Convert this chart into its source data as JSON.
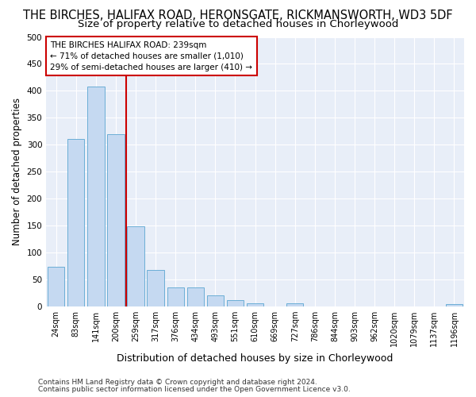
{
  "title": "THE BIRCHES, HALIFAX ROAD, HERONSGATE, RICKMANSWORTH, WD3 5DF",
  "subtitle": "Size of property relative to detached houses in Chorleywood",
  "xlabel": "Distribution of detached houses by size in Chorleywood",
  "ylabel": "Number of detached properties",
  "categories": [
    "24sqm",
    "83sqm",
    "141sqm",
    "200sqm",
    "259sqm",
    "317sqm",
    "376sqm",
    "434sqm",
    "493sqm",
    "551sqm",
    "610sqm",
    "669sqm",
    "727sqm",
    "786sqm",
    "844sqm",
    "903sqm",
    "962sqm",
    "1020sqm",
    "1079sqm",
    "1137sqm",
    "1196sqm"
  ],
  "values": [
    73,
    310,
    408,
    320,
    148,
    68,
    35,
    35,
    20,
    12,
    6,
    0,
    6,
    0,
    0,
    0,
    0,
    0,
    0,
    0,
    4
  ],
  "bar_color": "#c5d9f1",
  "bar_edgecolor": "#6baed6",
  "annotation_text_line1": "THE BIRCHES HALIFAX ROAD: 239sqm",
  "annotation_text_line2": "← 71% of detached houses are smaller (1,010)",
  "annotation_text_line3": "29% of semi-detached houses are larger (410) →",
  "annotation_box_color": "#ffffff",
  "annotation_box_edgecolor": "#cc0000",
  "vline_color": "#cc0000",
  "vline_x": 3.5,
  "ylim": [
    0,
    500
  ],
  "yticks": [
    0,
    50,
    100,
    150,
    200,
    250,
    300,
    350,
    400,
    450,
    500
  ],
  "footer_line1": "Contains HM Land Registry data © Crown copyright and database right 2024.",
  "footer_line2": "Contains public sector information licensed under the Open Government Licence v3.0.",
  "bg_color": "#ffffff",
  "plot_bg_color": "#e8eef8",
  "grid_color": "#ffffff",
  "title_fontsize": 10.5,
  "subtitle_fontsize": 9.5,
  "ylabel_fontsize": 8.5,
  "xlabel_fontsize": 9,
  "tick_fontsize": 7,
  "footer_fontsize": 6.5,
  "annot_fontsize": 7.5
}
